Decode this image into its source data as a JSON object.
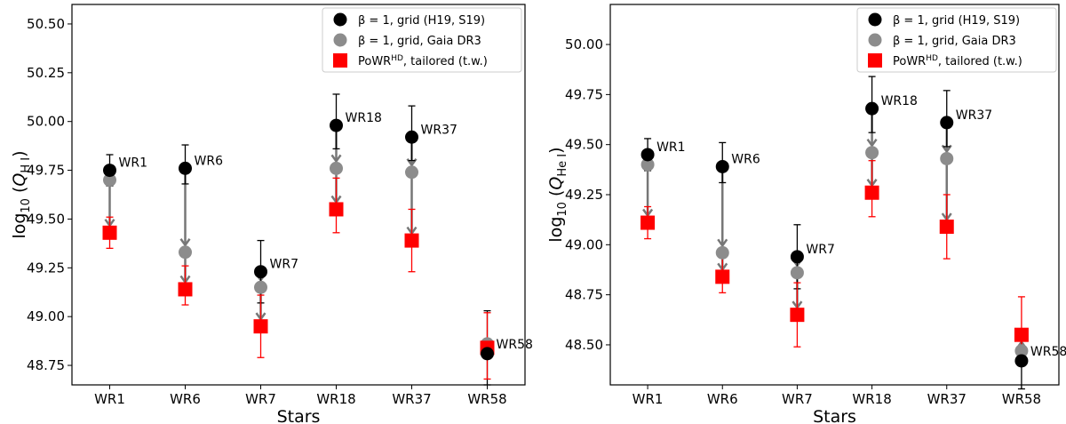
{
  "chart_data": [
    {
      "type": "scatter",
      "categories": [
        "WR1",
        "WR6",
        "WR7",
        "WR18",
        "WR37",
        "WR58"
      ],
      "xlabel": "Stars",
      "ylabel": "log",
      "ylabel_sub": "10",
      "ylabel_q": "Q",
      "ylabel_qsub": "H I",
      "ylim": [
        48.65,
        50.6
      ],
      "yticks": [
        48.75,
        49.0,
        49.25,
        49.5,
        49.75,
        50.0,
        50.25,
        50.5
      ],
      "ytick_labels": [
        "48.75",
        "49.00",
        "49.25",
        "49.50",
        "49.75",
        "50.00",
        "50.25",
        "50.50"
      ],
      "legend_position": "top-right",
      "series": [
        {
          "name": "β = 1, grid (H19, S19)",
          "color": "#000000",
          "marker": "circle",
          "values": [
            49.75,
            49.76,
            49.23,
            49.98,
            49.92,
            48.81
          ],
          "err_plus": [
            0.08,
            0.12,
            0.16,
            0.16,
            0.16,
            0.22
          ],
          "err_minus": [
            0.08,
            0.08,
            0.16,
            0.12,
            0.12,
            0.16
          ]
        },
        {
          "name": "β = 1, grid, Gaia DR3",
          "color": "#8c8c8c",
          "marker": "circle",
          "values": [
            49.7,
            49.33,
            49.15,
            49.76,
            49.74,
            48.86
          ],
          "err_plus": [
            0,
            0,
            0,
            0,
            0,
            0
          ],
          "err_minus": [
            0,
            0,
            0,
            0,
            0,
            0
          ]
        },
        {
          "name": "PoWR",
          "name_sup": "HD",
          "name_rest": ", tailored (t.w.)",
          "color": "#ff0000",
          "marker": "square",
          "values": [
            49.43,
            49.14,
            48.95,
            49.55,
            49.39,
            48.84
          ],
          "err_plus": [
            0.08,
            0.12,
            0.16,
            0.16,
            0.16,
            0.18
          ],
          "err_minus": [
            0.08,
            0.08,
            0.16,
            0.12,
            0.16,
            0.16
          ]
        }
      ],
      "point_labels": [
        "WR1",
        "WR6",
        "WR7",
        "WR18",
        "WR37",
        "WR58"
      ]
    },
    {
      "type": "scatter",
      "categories": [
        "WR1",
        "WR6",
        "WR7",
        "WR18",
        "WR37",
        "WR58"
      ],
      "xlabel": "Stars",
      "ylabel": "log",
      "ylabel_sub": "10",
      "ylabel_q": "Q",
      "ylabel_qsub": "He I",
      "ylim": [
        48.3,
        50.2
      ],
      "yticks": [
        48.5,
        48.75,
        49.0,
        49.25,
        49.5,
        49.75,
        50.0
      ],
      "ytick_labels": [
        "48.50",
        "48.75",
        "49.00",
        "49.25",
        "49.50",
        "49.75",
        "50.00"
      ],
      "legend_position": "top-right",
      "series": [
        {
          "name": "β = 1, grid (H19, S19)",
          "color": "#000000",
          "marker": "circle",
          "values": [
            49.45,
            49.39,
            48.94,
            49.68,
            49.61,
            48.42
          ],
          "err_plus": [
            0.08,
            0.12,
            0.16,
            0.16,
            0.16,
            0.14
          ],
          "err_minus": [
            0.08,
            0.08,
            0.16,
            0.12,
            0.12,
            0.14
          ]
        },
        {
          "name": "β = 1, grid, Gaia DR3",
          "color": "#8c8c8c",
          "marker": "circle",
          "values": [
            49.4,
            48.96,
            48.86,
            49.46,
            49.43,
            48.47
          ],
          "err_plus": [
            0,
            0,
            0,
            0,
            0,
            0
          ],
          "err_minus": [
            0,
            0,
            0,
            0,
            0,
            0
          ]
        },
        {
          "name": "PoWR",
          "name_sup": "HD",
          "name_rest": ", tailored (t.w.)",
          "color": "#ff0000",
          "marker": "square",
          "values": [
            49.11,
            48.84,
            48.65,
            49.26,
            49.09,
            48.55
          ],
          "err_plus": [
            0.08,
            0.12,
            0.16,
            0.16,
            0.16,
            0.19
          ],
          "err_minus": [
            0.08,
            0.08,
            0.16,
            0.12,
            0.16,
            0.15
          ]
        }
      ],
      "point_labels": [
        "WR1",
        "WR6",
        "WR7",
        "WR18",
        "WR37",
        "WR58"
      ]
    }
  ]
}
